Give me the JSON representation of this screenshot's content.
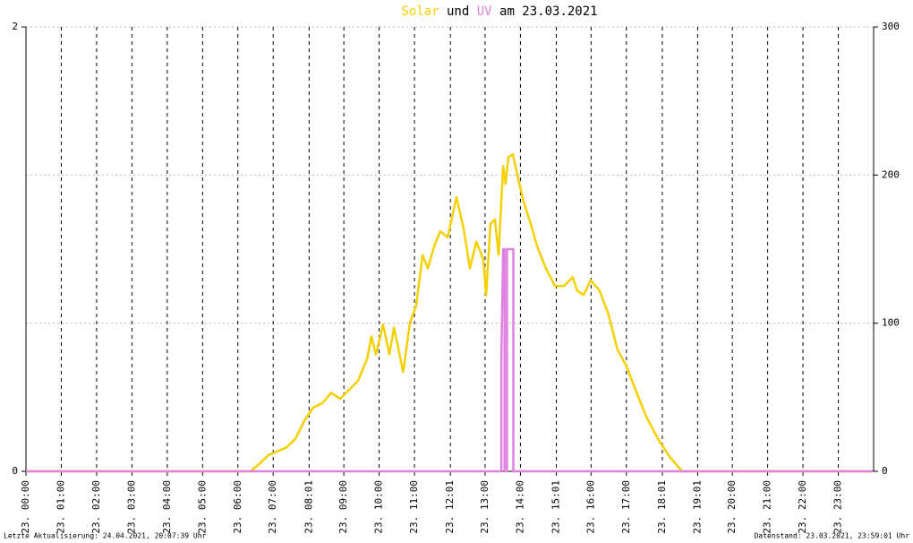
{
  "chart_data": {
    "type": "line",
    "title_joiner": "und",
    "title_date": "am 23.03.2021",
    "footer_left": "Letzte Aktualisierung: 24.04.2021, 20:07:39 Uhr",
    "footer_right": "Datenstand: 23.03.2021, 23:59:01 Uhr",
    "xlim": [
      0,
      24
    ],
    "xticks": [
      {
        "value": 0,
        "label": "23. 00:00"
      },
      {
        "value": 1,
        "label": "23. 01:00"
      },
      {
        "value": 2,
        "label": "23. 02:00"
      },
      {
        "value": 3,
        "label": "23. 03:00"
      },
      {
        "value": 4,
        "label": "23. 04:00"
      },
      {
        "value": 5,
        "label": "23. 05:00"
      },
      {
        "value": 6,
        "label": "23. 06:00"
      },
      {
        "value": 7,
        "label": "23. 07:00"
      },
      {
        "value": 8.017,
        "label": "23. 08:01"
      },
      {
        "value": 9,
        "label": "23. 09:00"
      },
      {
        "value": 10,
        "label": "23. 10:00"
      },
      {
        "value": 11,
        "label": "23. 11:00"
      },
      {
        "value": 12.017,
        "label": "23. 12:01"
      },
      {
        "value": 13,
        "label": "23. 13:00"
      },
      {
        "value": 14,
        "label": "23. 14:00"
      },
      {
        "value": 15.017,
        "label": "23. 15:01"
      },
      {
        "value": 16,
        "label": "23. 16:00"
      },
      {
        "value": 17,
        "label": "23. 17:00"
      },
      {
        "value": 18.017,
        "label": "23. 18:01"
      },
      {
        "value": 19.017,
        "label": "23. 19:01"
      },
      {
        "value": 20,
        "label": "23. 20:00"
      },
      {
        "value": 21,
        "label": "23. 21:00"
      },
      {
        "value": 22,
        "label": "23. 22:00"
      },
      {
        "value": 23,
        "label": "23. 23:00"
      }
    ],
    "ylim": [
      0,
      2
    ],
    "yticks": [
      0,
      2
    ],
    "y2lim": [
      0,
      300
    ],
    "y2ticks": [
      0,
      100,
      200,
      300
    ],
    "grid": true,
    "series": [
      {
        "name": "Solar",
        "color": "#f5d000",
        "axis": "y2",
        "x": [
          0,
          6.36,
          6.61,
          6.87,
          7.37,
          7.63,
          7.88,
          8.13,
          8.39,
          8.64,
          8.9,
          9.15,
          9.4,
          9.66,
          9.78,
          9.91,
          10.11,
          10.29,
          10.42,
          10.68,
          10.87,
          11.05,
          11.23,
          11.38,
          11.56,
          11.73,
          11.94,
          12.19,
          12.39,
          12.57,
          12.75,
          12.95,
          13.03,
          13.15,
          13.28,
          13.38,
          13.51,
          13.58,
          13.66,
          13.79,
          13.91,
          14.09,
          14.29,
          14.47,
          14.72,
          14.98,
          15.23,
          15.48,
          15.61,
          15.79,
          15.99,
          16.24,
          16.49,
          16.75,
          17.0,
          17.31,
          17.56,
          17.89,
          18.22,
          18.58,
          23.98
        ],
        "values": [
          0,
          0,
          5,
          11,
          16,
          22,
          34,
          43,
          46,
          53,
          49,
          55,
          61,
          76,
          91,
          79,
          99,
          79,
          97,
          67,
          100,
          112,
          146,
          137,
          152,
          162,
          158,
          185,
          164,
          137,
          155,
          143,
          119,
          167,
          170,
          146,
          206,
          194,
          212,
          214,
          200,
          182,
          167,
          152,
          137,
          125,
          125,
          131,
          122,
          119,
          129,
          122,
          106,
          82,
          71,
          52,
          37,
          22,
          10,
          0,
          0
        ]
      },
      {
        "name": "UV",
        "color": "#e080e0",
        "axis": "y",
        "x": [
          0,
          13.46,
          13.46,
          13.51,
          13.55,
          13.55,
          13.62,
          13.62,
          13.8,
          13.8,
          23.98
        ],
        "values": [
          0,
          0,
          0.5,
          1,
          1,
          0,
          0,
          1,
          1,
          0,
          0
        ]
      }
    ]
  }
}
